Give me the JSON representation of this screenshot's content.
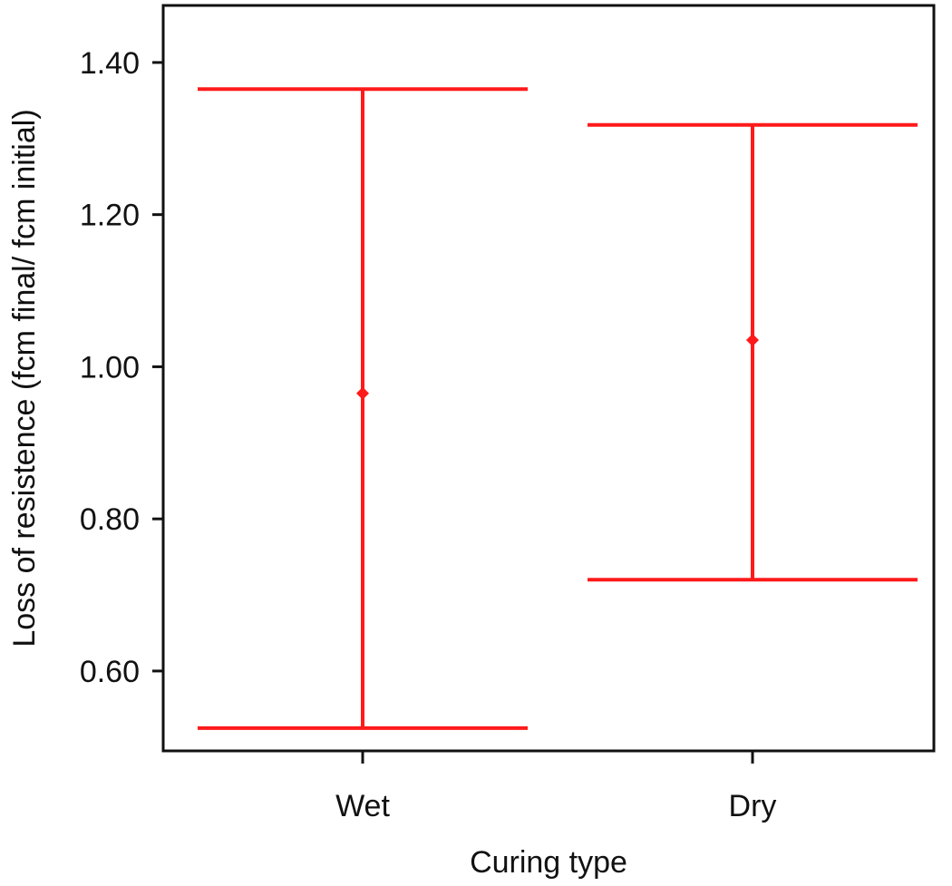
{
  "chart_data": {
    "type": "errorbar",
    "title": "",
    "xlabel": "Curing type",
    "ylabel": "Loss of resistence (fcm final/ fcm initial)",
    "categories": [
      "Wet",
      "Dry"
    ],
    "series": [
      {
        "means": [
          0.965,
          1.035
        ],
        "lower": [
          0.525,
          0.72
        ],
        "upper": [
          1.365,
          1.318
        ]
      }
    ],
    "yticks": [
      0.6,
      0.8,
      1.0,
      1.2,
      1.4
    ],
    "ytick_labels": [
      "0.60",
      "0.80",
      "1.00",
      "1.20",
      "1.40"
    ],
    "ylim": [
      0.495,
      1.475
    ],
    "grid": false,
    "colors": {
      "series": "#ff1a1a",
      "axis": "#111111"
    }
  }
}
